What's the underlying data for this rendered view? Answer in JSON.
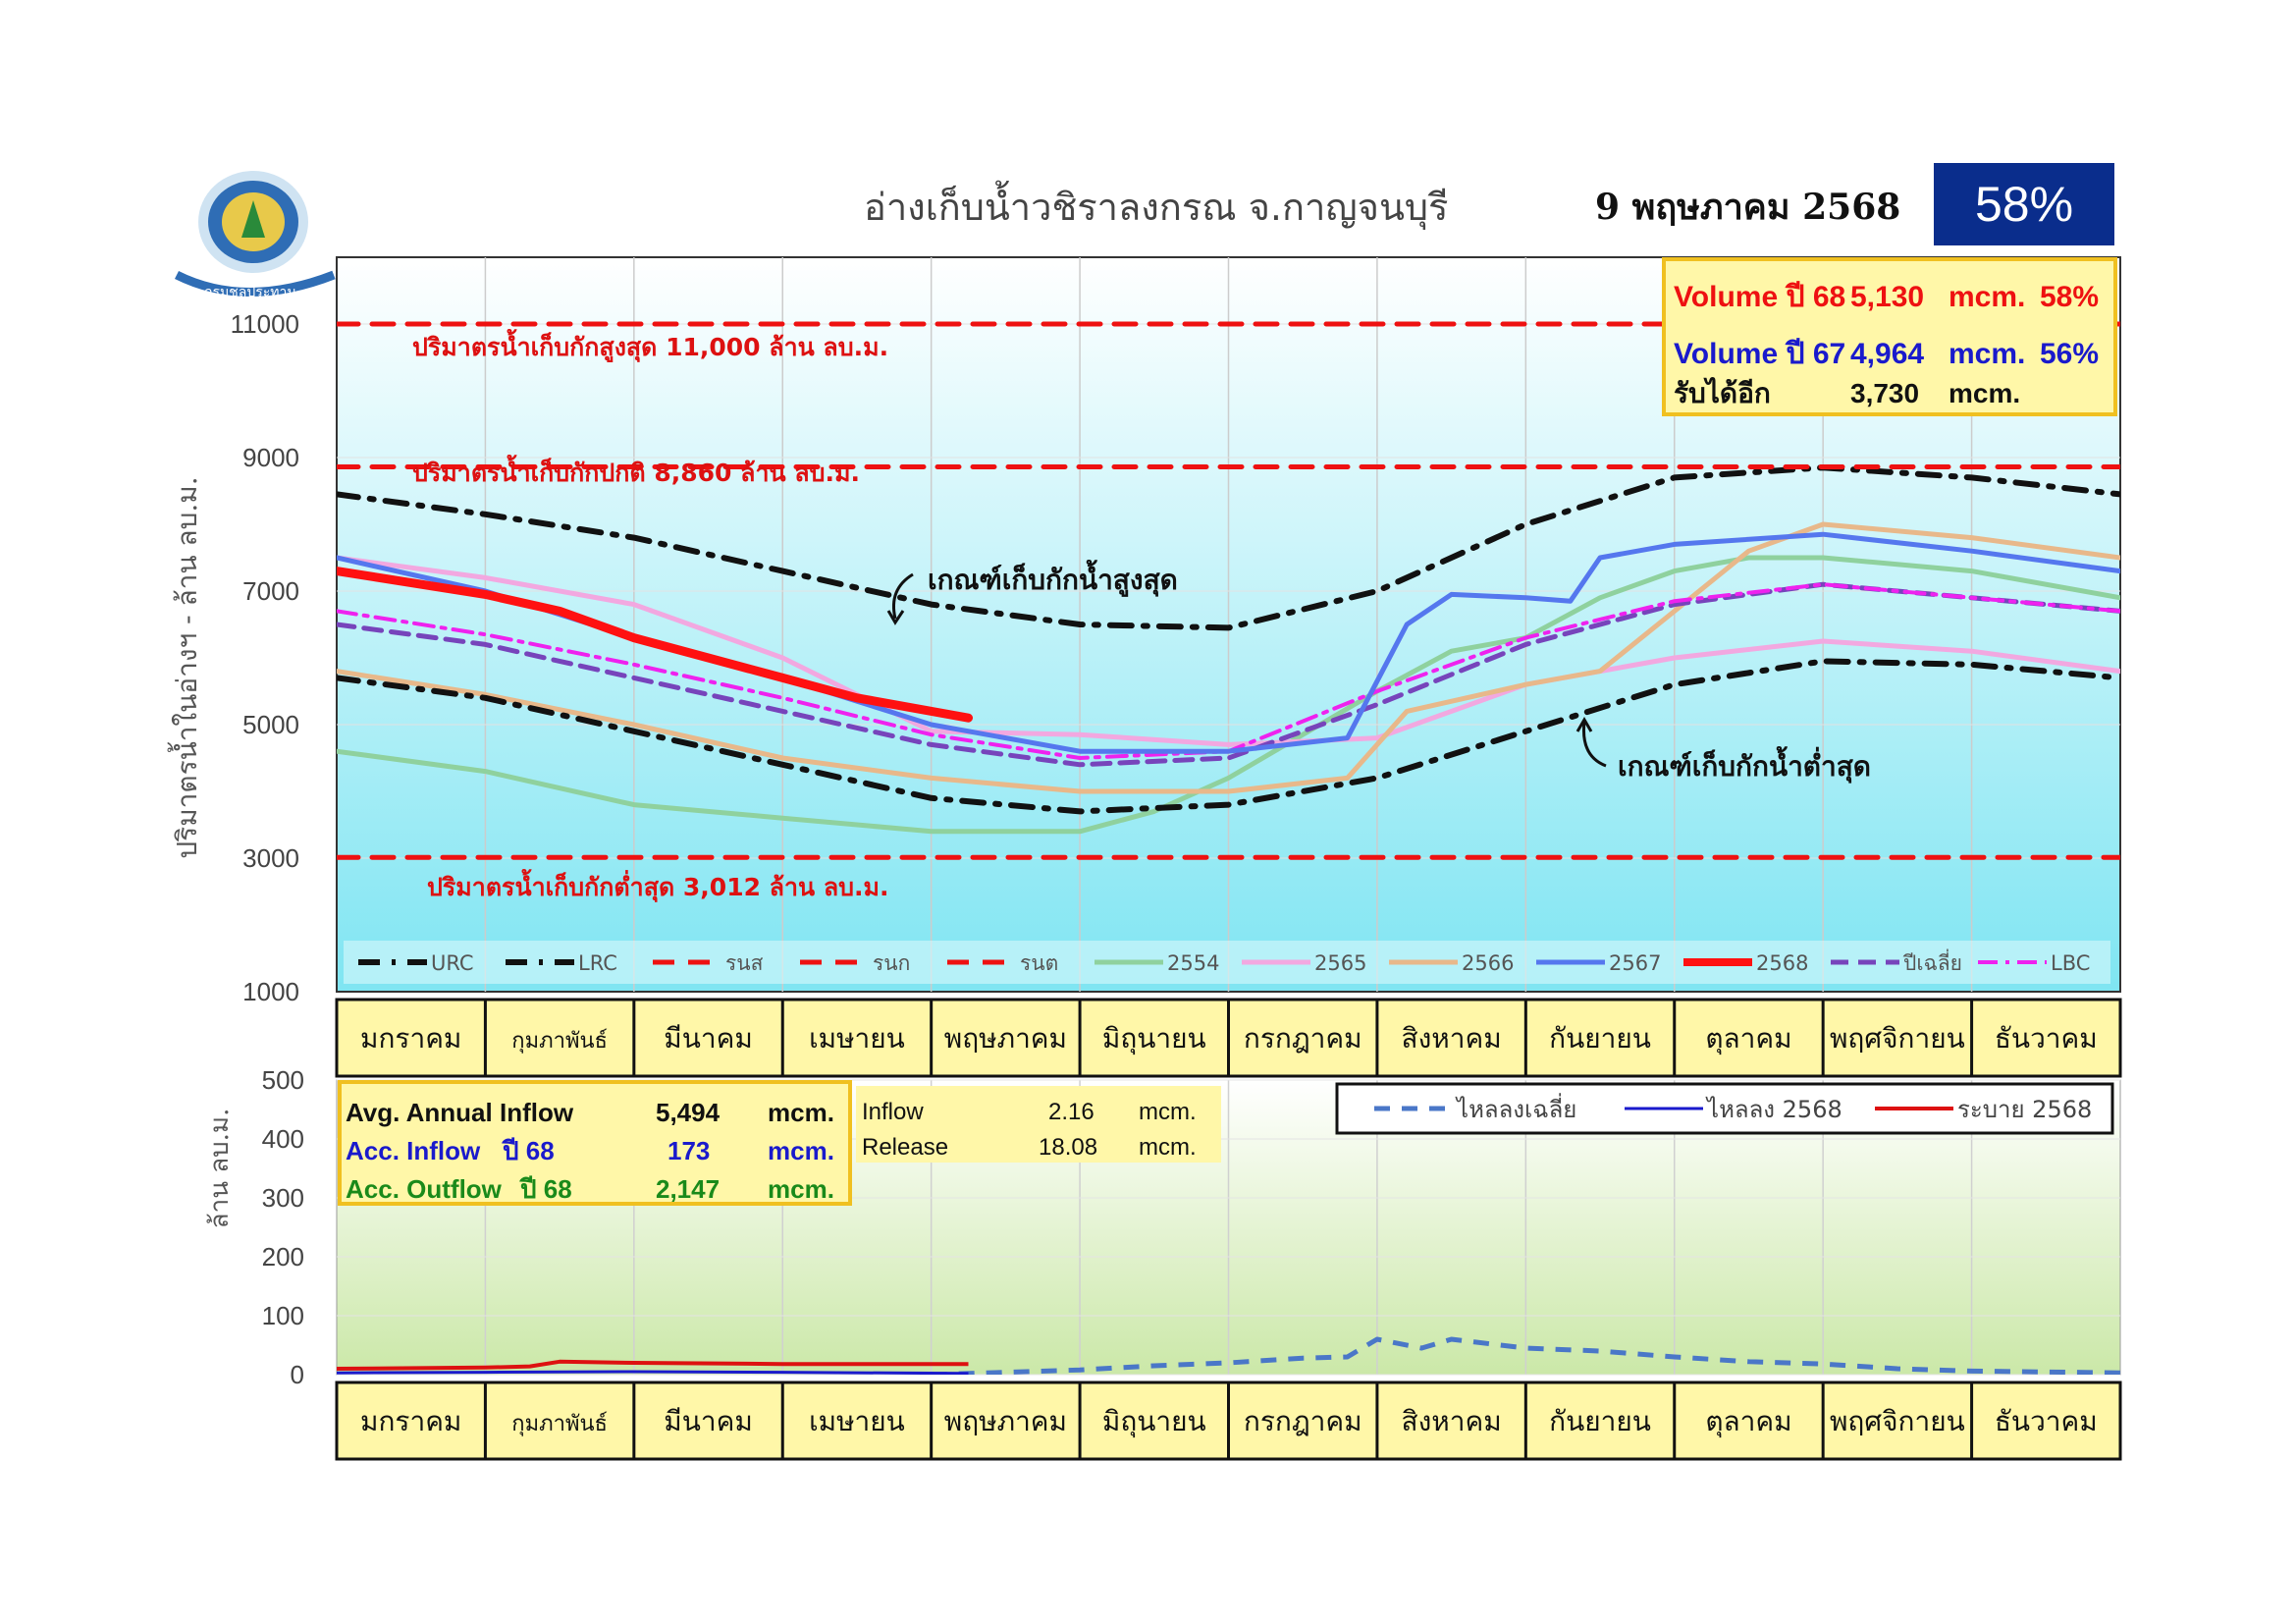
{
  "header": {
    "title": "อ่างเก็บน้ำวชิราลงกรณ จ.กาญจนบุรี",
    "date": "9 พฤษภาคม 2568",
    "percent": "58%",
    "logo_text": "กรมชลประทาน"
  },
  "colors": {
    "urc": "#111111",
    "lrc": "#111111",
    "ref": "#ee1111",
    "s2554": "#8fd19e",
    "s2565": "#f2a8e0",
    "s2566": "#e8b88a",
    "s2567": "#5577ee",
    "s2568": "#ff1111",
    "avg": "#7744bb",
    "lbc": "#ee22ee",
    "outflow_avg": "#4a77c8",
    "outflow_2568": "#1a1acc",
    "release_2568": "#dd1111",
    "upper_bg_top": "#ffffff",
    "upper_bg_bottom": "#7fe5f2",
    "lower_bg_bottom": "#cbe8a8",
    "info_box_bg": "#fff7a8",
    "info_box_border": "#f0c020"
  },
  "months": [
    "มกราคม",
    "กุมภาพันธ์",
    "มีนาคม",
    "เมษายน",
    "พฤษภาคม",
    "มิถุนายน",
    "กรกฎาคม",
    "สิงหาคม",
    "กันยายน",
    "ตุลาคม",
    "พฤศจิกายน",
    "ธันวาคม"
  ],
  "upper_info": {
    "row1": {
      "label": "Volume ปี 68",
      "value": "5,130",
      "unit": "mcm.",
      "pct": "58%"
    },
    "row2": {
      "label": "Volume ปี 67",
      "value": "4,964",
      "unit": "mcm.",
      "pct": "56%"
    },
    "row3": {
      "label": "รับได้อีก",
      "value": "3,730",
      "unit": "mcm."
    }
  },
  "annotations": {
    "max_line": "ปริมาตรน้ำเก็บกักสูงสุด 11,000 ล้าน ลบ.ม.",
    "normal_line": "ปริมาตรน้ำเก็บกักปกติ 8,860 ล้าน ลบ.ม.",
    "min_line": "ปริมาตรน้ำเก็บกักต่ำสุด 3,012 ล้าน ลบ.ม.",
    "urc_label": "เกณฑ์เก็บกักน้ำสูงสุด",
    "lrc_label": "เกณฑ์เก็บกักน้ำต่ำสุด"
  },
  "lower_info": {
    "avg_label": "Avg. Annual Inflow",
    "avg_value": "5,494",
    "avg_unit": "mcm.",
    "acc_in_label": "Acc. Inflow",
    "acc_in_year": "ปี 68",
    "acc_in_value": "173",
    "acc_in_unit": "mcm.",
    "acc_out_label": "Acc. Outflow",
    "acc_out_year": "ปี 68",
    "acc_out_value": "2,147",
    "acc_out_unit": "mcm.",
    "inflow_label": "Inflow",
    "inflow_value": "2.16",
    "inflow_unit": "mcm.",
    "release_label": "Release",
    "release_value": "18.08",
    "release_unit": "mcm."
  },
  "chart_data": [
    {
      "type": "line",
      "ylabel": "ปริมาตรน้ำในอ่างฯ - ล้าน ลบ.ม.",
      "ylim": [
        1000,
        12000
      ],
      "yticks": [
        1000,
        3000,
        5000,
        7000,
        9000,
        11000
      ],
      "x_unit": "month index (0 = start of มกราคม, 12 = end of ธันวาคม)",
      "grid": true,
      "legend_position": "bottom",
      "series": [
        {
          "name": "URC",
          "style": "dashdot",
          "points": [
            [
              0,
              8450
            ],
            [
              1,
              8150
            ],
            [
              2,
              7800
            ],
            [
              3,
              7300
            ],
            [
              4,
              6800
            ],
            [
              5,
              6500
            ],
            [
              6,
              6450
            ],
            [
              7,
              7000
            ],
            [
              8,
              8000
            ],
            [
              9,
              8700
            ],
            [
              10,
              8850
            ],
            [
              11,
              8700
            ],
            [
              12,
              8450
            ]
          ]
        },
        {
          "name": "LRC",
          "style": "dashdot",
          "points": [
            [
              0,
              5700
            ],
            [
              1,
              5400
            ],
            [
              2,
              4900
            ],
            [
              3,
              4400
            ],
            [
              4,
              3900
            ],
            [
              5,
              3700
            ],
            [
              6,
              3800
            ],
            [
              7,
              4200
            ],
            [
              8,
              4900
            ],
            [
              9,
              5600
            ],
            [
              10,
              5950
            ],
            [
              11,
              5900
            ],
            [
              12,
              5700
            ]
          ]
        },
        {
          "name": "รนส",
          "style": "dash",
          "points": [
            [
              0,
              11000
            ],
            [
              12,
              11000
            ]
          ]
        },
        {
          "name": "รนก",
          "style": "dash",
          "points": [
            [
              0,
              8860
            ],
            [
              12,
              8860
            ]
          ]
        },
        {
          "name": "รนต",
          "style": "dash",
          "points": [
            [
              0,
              3012
            ],
            [
              12,
              3012
            ]
          ]
        },
        {
          "name": "2554",
          "style": "solid",
          "points": [
            [
              0,
              4600
            ],
            [
              1,
              4300
            ],
            [
              2,
              3800
            ],
            [
              3,
              3600
            ],
            [
              4,
              3400
            ],
            [
              5,
              3400
            ],
            [
              5.5,
              3700
            ],
            [
              6,
              4200
            ],
            [
              7,
              5500
            ],
            [
              7.5,
              6100
            ],
            [
              8,
              6300
            ],
            [
              8.5,
              6900
            ],
            [
              9,
              7300
            ],
            [
              9.5,
              7500
            ],
            [
              10,
              7500
            ],
            [
              11,
              7300
            ],
            [
              12,
              6900
            ]
          ]
        },
        {
          "name": "2565",
          "style": "solid",
          "points": [
            [
              0,
              7500
            ],
            [
              1,
              7200
            ],
            [
              2,
              6800
            ],
            [
              3,
              6000
            ],
            [
              4,
              4900
            ],
            [
              5,
              4850
            ],
            [
              6,
              4700
            ],
            [
              7,
              4800
            ],
            [
              8,
              5600
            ],
            [
              9,
              6000
            ],
            [
              10,
              6250
            ],
            [
              11,
              6100
            ],
            [
              12,
              5800
            ]
          ]
        },
        {
          "name": "2566",
          "style": "solid",
          "points": [
            [
              0,
              5800
            ],
            [
              1,
              5450
            ],
            [
              2,
              5000
            ],
            [
              3,
              4500
            ],
            [
              4,
              4200
            ],
            [
              5,
              4000
            ],
            [
              6,
              4000
            ],
            [
              6.8,
              4200
            ],
            [
              7.2,
              5200
            ],
            [
              8,
              5600
            ],
            [
              8.5,
              5800
            ],
            [
              9,
              6700
            ],
            [
              9.5,
              7600
            ],
            [
              10,
              8000
            ],
            [
              11,
              7800
            ],
            [
              12,
              7500
            ]
          ]
        },
        {
          "name": "2567",
          "style": "solid",
          "points": [
            [
              0,
              7500
            ],
            [
              1,
              7000
            ],
            [
              2,
              6300
            ],
            [
              3,
              5700
            ],
            [
              4,
              5000
            ],
            [
              5,
              4600
            ],
            [
              6,
              4600
            ],
            [
              6.8,
              4800
            ],
            [
              7.2,
              6500
            ],
            [
              7.5,
              6950
            ],
            [
              8,
              6900
            ],
            [
              8.3,
              6850
            ],
            [
              8.5,
              7500
            ],
            [
              9,
              7700
            ],
            [
              10,
              7850
            ],
            [
              11,
              7600
            ],
            [
              12,
              7300
            ]
          ]
        },
        {
          "name": "2568",
          "style": "solid-thick",
          "points": [
            [
              0,
              7300
            ],
            [
              1,
              6950
            ],
            [
              1.5,
              6700
            ],
            [
              2,
              6300
            ],
            [
              2.5,
              6000
            ],
            [
              3,
              5700
            ],
            [
              3.5,
              5400
            ],
            [
              4.25,
              5100
            ]
          ]
        },
        {
          "name": "ปีเฉลี่ย",
          "style": "dash",
          "points": [
            [
              0,
              6500
            ],
            [
              1,
              6200
            ],
            [
              2,
              5700
            ],
            [
              3,
              5200
            ],
            [
              4,
              4700
            ],
            [
              5,
              4400
            ],
            [
              6,
              4500
            ],
            [
              7,
              5300
            ],
            [
              8,
              6200
            ],
            [
              9,
              6800
            ],
            [
              10,
              7100
            ],
            [
              11,
              6900
            ],
            [
              12,
              6700
            ]
          ]
        },
        {
          "name": "LBC",
          "style": "dashdot",
          "points": [
            [
              0,
              6700
            ],
            [
              1,
              6350
            ],
            [
              2,
              5900
            ],
            [
              3,
              5400
            ],
            [
              4,
              4850
            ],
            [
              5,
              4500
            ],
            [
              6,
              4600
            ],
            [
              7,
              5500
            ],
            [
              8,
              6300
            ],
            [
              9,
              6850
            ],
            [
              10,
              7100
            ],
            [
              11,
              6900
            ],
            [
              12,
              6700
            ]
          ]
        }
      ]
    },
    {
      "type": "line",
      "ylabel": "ล้าน ลบ.ม.",
      "ylim": [
        0,
        500
      ],
      "yticks": [
        0,
        100,
        200,
        300,
        400,
        500
      ],
      "x_unit": "month index",
      "grid": true,
      "legend_position": "top-right",
      "series": [
        {
          "name": "ไหลลงเฉลี่ย",
          "style": "dash",
          "points": [
            [
              4,
              0
            ],
            [
              5,
              8
            ],
            [
              5.5,
              15
            ],
            [
              6,
              20
            ],
            [
              6.5,
              28
            ],
            [
              6.8,
              30
            ],
            [
              7,
              60
            ],
            [
              7.3,
              45
            ],
            [
              7.5,
              60
            ],
            [
              8,
              45
            ],
            [
              8.5,
              40
            ],
            [
              9,
              30
            ],
            [
              9.5,
              22
            ],
            [
              10,
              18
            ],
            [
              10.5,
              10
            ],
            [
              11,
              6
            ],
            [
              12,
              3
            ]
          ]
        },
        {
          "name": "ไหลลง 2568",
          "style": "solid",
          "points": [
            [
              0,
              3
            ],
            [
              1,
              4
            ],
            [
              2,
              5
            ],
            [
              3,
              4
            ],
            [
              4.25,
              2
            ]
          ]
        },
        {
          "name": "ระบาย 2568",
          "style": "solid",
          "points": [
            [
              0,
              10
            ],
            [
              1,
              12
            ],
            [
              1.3,
              14
            ],
            [
              1.5,
              22
            ],
            [
              2,
              20
            ],
            [
              3,
              18
            ],
            [
              4.25,
              18
            ]
          ]
        }
      ]
    }
  ]
}
